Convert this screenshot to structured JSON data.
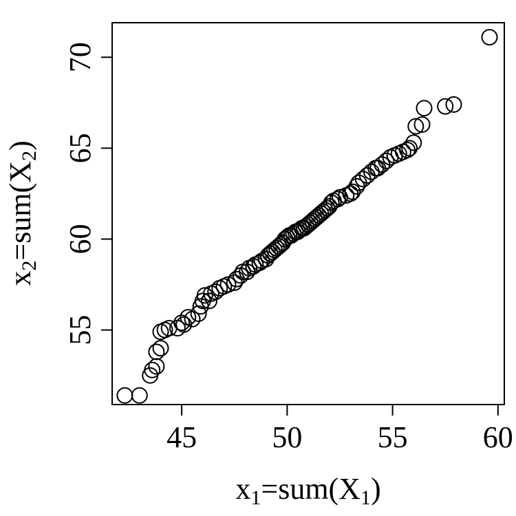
{
  "chart_data": {
    "type": "scatter",
    "title": "",
    "xlabel": {
      "pre": "x",
      "sub": "1",
      "mid": "=sum(X",
      "sub2": "1",
      "post": ")"
    },
    "ylabel": {
      "pre": "x",
      "sub": "2",
      "mid": "=sum(X",
      "sub2": "2",
      "post": ")"
    },
    "xlim": [
      41.7,
      60.3
    ],
    "ylim": [
      50.9,
      71.9
    ],
    "xticks": [
      45,
      50,
      55,
      60
    ],
    "yticks": [
      55,
      60,
      65,
      70
    ],
    "grid": false,
    "marker": "open-circle",
    "color": "#000000",
    "points": [
      [
        42.3,
        51.4
      ],
      [
        43.0,
        51.4
      ],
      [
        43.5,
        52.5
      ],
      [
        43.6,
        52.8
      ],
      [
        43.8,
        53.0
      ],
      [
        43.8,
        53.8
      ],
      [
        44.0,
        54.0
      ],
      [
        44.0,
        54.9
      ],
      [
        44.2,
        55.0
      ],
      [
        44.4,
        55.1
      ],
      [
        44.8,
        55.1
      ],
      [
        45.0,
        55.4
      ],
      [
        45.1,
        55.3
      ],
      [
        45.3,
        55.7
      ],
      [
        45.5,
        55.6
      ],
      [
        45.8,
        55.9
      ],
      [
        45.9,
        56.3
      ],
      [
        46.0,
        56.6
      ],
      [
        46.1,
        56.9
      ],
      [
        46.3,
        56.6
      ],
      [
        46.4,
        57.0
      ],
      [
        46.6,
        57.1
      ],
      [
        46.8,
        57.3
      ],
      [
        47.0,
        57.4
      ],
      [
        47.2,
        57.5
      ],
      [
        47.5,
        57.6
      ],
      [
        47.6,
        57.8
      ],
      [
        47.8,
        58.0
      ],
      [
        47.9,
        58.2
      ],
      [
        48.1,
        58.2
      ],
      [
        48.2,
        58.4
      ],
      [
        48.4,
        58.5
      ],
      [
        48.5,
        58.6
      ],
      [
        48.7,
        58.7
      ],
      [
        48.8,
        58.8
      ],
      [
        49.0,
        58.9
      ],
      [
        49.1,
        59.1
      ],
      [
        49.2,
        59.2
      ],
      [
        49.3,
        59.3
      ],
      [
        49.4,
        59.4
      ],
      [
        49.5,
        59.5
      ],
      [
        49.6,
        59.6
      ],
      [
        49.7,
        59.7
      ],
      [
        49.8,
        59.8
      ],
      [
        49.9,
        60.0
      ],
      [
        50.0,
        60.1
      ],
      [
        50.1,
        60.2
      ],
      [
        50.2,
        60.2
      ],
      [
        50.3,
        60.3
      ],
      [
        50.4,
        60.4
      ],
      [
        50.5,
        60.4
      ],
      [
        50.6,
        60.5
      ],
      [
        50.7,
        60.6
      ],
      [
        50.8,
        60.6
      ],
      [
        50.9,
        60.7
      ],
      [
        51.0,
        60.8
      ],
      [
        51.1,
        60.9
      ],
      [
        51.2,
        61.0
      ],
      [
        51.3,
        61.1
      ],
      [
        51.4,
        61.2
      ],
      [
        51.5,
        61.3
      ],
      [
        51.6,
        61.4
      ],
      [
        51.7,
        61.5
      ],
      [
        51.8,
        61.6
      ],
      [
        51.9,
        61.7
      ],
      [
        52.0,
        61.8
      ],
      [
        52.1,
        62.0
      ],
      [
        52.2,
        62.1
      ],
      [
        52.4,
        62.2
      ],
      [
        52.5,
        62.3
      ],
      [
        52.8,
        62.4
      ],
      [
        53.0,
        62.5
      ],
      [
        53.1,
        62.6
      ],
      [
        53.3,
        62.9
      ],
      [
        53.4,
        63.1
      ],
      [
        53.6,
        63.3
      ],
      [
        53.8,
        63.5
      ],
      [
        54.0,
        63.7
      ],
      [
        54.2,
        63.9
      ],
      [
        54.3,
        63.9
      ],
      [
        54.5,
        64.1
      ],
      [
        54.7,
        64.3
      ],
      [
        54.9,
        64.5
      ],
      [
        55.1,
        64.6
      ],
      [
        55.3,
        64.7
      ],
      [
        55.5,
        64.8
      ],
      [
        55.7,
        64.9
      ],
      [
        55.8,
        65.0
      ],
      [
        56.0,
        65.3
      ],
      [
        56.1,
        66.2
      ],
      [
        56.4,
        66.3
      ],
      [
        56.5,
        67.2
      ],
      [
        57.5,
        67.3
      ],
      [
        57.9,
        67.4
      ],
      [
        59.6,
        71.1
      ]
    ]
  }
}
